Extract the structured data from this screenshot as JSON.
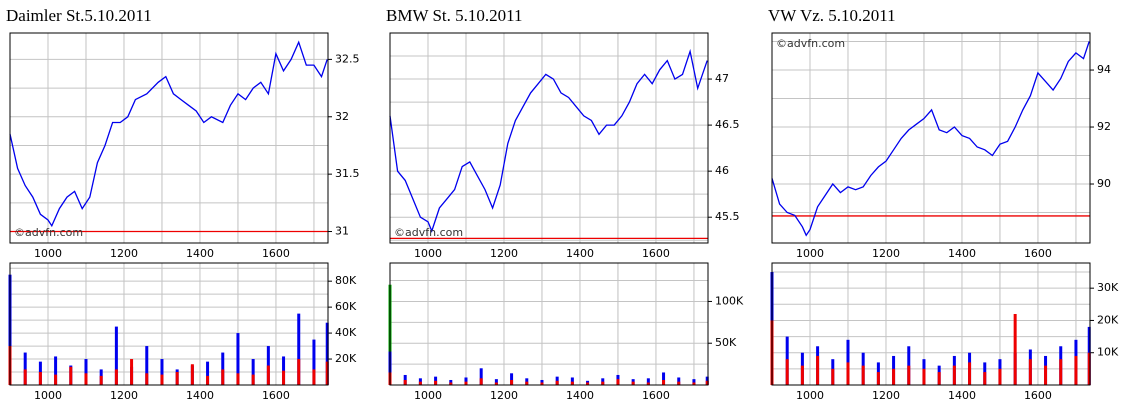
{
  "chart_data": [
    {
      "type": "line",
      "title": "Daimler St.5.10.2011",
      "watermark": "©advfn.com",
      "watermark_corner": "bottom-left",
      "x": [
        900,
        920,
        940,
        960,
        980,
        1000,
        1010,
        1030,
        1050,
        1070,
        1090,
        1110,
        1130,
        1150,
        1170,
        1190,
        1210,
        1230,
        1260,
        1290,
        1310,
        1330,
        1350,
        1370,
        1390,
        1410,
        1430,
        1460,
        1480,
        1500,
        1520,
        1540,
        1560,
        1580,
        1600,
        1620,
        1640,
        1660,
        1680,
        1700,
        1720,
        1735
      ],
      "series": [
        {
          "color": "#0000ee",
          "values": [
            31.85,
            31.55,
            31.4,
            31.3,
            31.15,
            31.1,
            31.05,
            31.2,
            31.3,
            31.35,
            31.2,
            31.3,
            31.6,
            31.75,
            31.95,
            31.95,
            32.0,
            32.15,
            32.2,
            32.3,
            32.35,
            32.2,
            32.15,
            32.1,
            32.05,
            31.95,
            32.0,
            31.95,
            32.1,
            32.2,
            32.15,
            32.25,
            32.3,
            32.2,
            32.55,
            32.4,
            32.5,
            32.65,
            32.45,
            32.45,
            32.35,
            32.5
          ]
        }
      ],
      "ref_line": {
        "value": 31,
        "color": "#ee0000"
      },
      "xlim": [
        900,
        1737
      ],
      "ylim": [
        30.9,
        32.73
      ],
      "xticks": [
        1000,
        1200,
        1400,
        1600
      ],
      "yticks": [
        31,
        31.5,
        32,
        32.5
      ],
      "grid": true
    },
    {
      "type": "bar",
      "x": [
        900,
        940,
        980,
        1020,
        1060,
        1100,
        1140,
        1180,
        1220,
        1260,
        1300,
        1340,
        1380,
        1420,
        1460,
        1500,
        1540,
        1580,
        1620,
        1660,
        1700,
        1735
      ],
      "series": [
        {
          "color": "#0000ee",
          "values": [
            85000,
            25000,
            18000,
            22000,
            15000,
            20000,
            12000,
            45000,
            14000,
            30000,
            20000,
            12000,
            15000,
            18000,
            25000,
            40000,
            20000,
            30000,
            22000,
            55000,
            35000,
            48000
          ]
        },
        {
          "color": "#ee0000",
          "values": [
            30000,
            12000,
            10000,
            8000,
            14000,
            9000,
            7000,
            12000,
            20000,
            9000,
            8000,
            10000,
            16000,
            7000,
            12000,
            9000,
            8000,
            15000,
            11000,
            20000,
            12000,
            18000
          ]
        }
      ],
      "xlim": [
        900,
        1737
      ],
      "ylim": [
        0,
        94000
      ],
      "xticks": [
        1000,
        1200,
        1400,
        1600
      ],
      "yticks": [
        {
          "value": 20000,
          "label": "20K"
        },
        {
          "value": 40000,
          "label": "40K"
        },
        {
          "value": 60000,
          "label": "60K"
        },
        {
          "value": 80000,
          "label": "80K"
        }
      ],
      "grid": true
    },
    {
      "type": "line",
      "title": "BMW St. 5.10.2011",
      "watermark": "©advfn.com",
      "watermark_corner": "bottom-left",
      "x": [
        900,
        920,
        940,
        960,
        980,
        1000,
        1010,
        1030,
        1050,
        1070,
        1090,
        1110,
        1130,
        1150,
        1170,
        1190,
        1210,
        1230,
        1250,
        1270,
        1290,
        1310,
        1330,
        1350,
        1370,
        1390,
        1410,
        1430,
        1450,
        1470,
        1490,
        1510,
        1530,
        1550,
        1570,
        1590,
        1610,
        1630,
        1650,
        1670,
        1690,
        1710,
        1735
      ],
      "series": [
        {
          "color": "#0000ee",
          "values": [
            46.6,
            46.0,
            45.9,
            45.7,
            45.5,
            45.45,
            45.35,
            45.6,
            45.7,
            45.8,
            46.05,
            46.1,
            45.95,
            45.8,
            45.6,
            45.85,
            46.3,
            46.55,
            46.7,
            46.85,
            46.95,
            47.05,
            47.0,
            46.85,
            46.8,
            46.7,
            46.6,
            46.55,
            46.4,
            46.5,
            46.5,
            46.6,
            46.75,
            46.95,
            47.05,
            46.95,
            47.1,
            47.2,
            47.0,
            47.05,
            47.3,
            46.9,
            47.2
          ]
        }
      ],
      "ref_line": {
        "value": 45.27,
        "color": "#ee0000"
      },
      "xlim": [
        900,
        1737
      ],
      "ylim": [
        45.22,
        47.5
      ],
      "xticks": [
        1000,
        1200,
        1400,
        1600
      ],
      "yticks": [
        45.5,
        46,
        46.5,
        47
      ],
      "grid": true
    },
    {
      "type": "bar",
      "x": [
        900,
        940,
        980,
        1020,
        1060,
        1100,
        1140,
        1180,
        1220,
        1260,
        1300,
        1340,
        1380,
        1420,
        1460,
        1500,
        1540,
        1580,
        1620,
        1660,
        1700,
        1735
      ],
      "series": [
        {
          "color": "#00aa00",
          "values": [
            120000,
            null,
            null,
            null,
            null,
            null,
            null,
            null,
            null,
            null,
            null,
            null,
            null,
            null,
            null,
            null,
            null,
            null,
            null,
            null,
            null,
            null
          ]
        },
        {
          "color": "#0000ee",
          "values": [
            40000,
            12000,
            8000,
            10000,
            6000,
            9000,
            20000,
            7000,
            14000,
            8000,
            6000,
            10000,
            9000,
            5000,
            8000,
            12000,
            7000,
            8000,
            15000,
            9000,
            7000,
            10000
          ]
        },
        {
          "color": "#ee0000",
          "values": [
            15000,
            6000,
            4000,
            5000,
            3000,
            4000,
            8000,
            3000,
            6000,
            4000,
            3000,
            5000,
            4000,
            3000,
            4000,
            7000,
            4000,
            3000,
            6000,
            4000,
            3000,
            5000
          ]
        }
      ],
      "xlim": [
        900,
        1737
      ],
      "ylim": [
        0,
        146000
      ],
      "xticks": [
        1000,
        1200,
        1400,
        1600
      ],
      "yticks": [
        {
          "value": 50000,
          "label": "50K"
        },
        {
          "value": 100000,
          "label": "100K"
        }
      ],
      "grid": true
    },
    {
      "type": "line",
      "title": "VW Vz. 5.10.2011",
      "watermark": "©advfn.com",
      "watermark_corner": "top-left",
      "x": [
        900,
        920,
        940,
        960,
        980,
        990,
        1000,
        1020,
        1040,
        1060,
        1080,
        1100,
        1120,
        1140,
        1160,
        1180,
        1200,
        1220,
        1240,
        1260,
        1280,
        1300,
        1320,
        1340,
        1360,
        1380,
        1400,
        1420,
        1440,
        1460,
        1480,
        1500,
        1520,
        1540,
        1560,
        1580,
        1600,
        1620,
        1640,
        1660,
        1680,
        1700,
        1720,
        1735
      ],
      "series": [
        {
          "color": "#0000ee",
          "values": [
            90.2,
            89.3,
            89.0,
            88.9,
            88.5,
            88.2,
            88.4,
            89.2,
            89.6,
            90.0,
            89.7,
            89.9,
            89.8,
            89.9,
            90.3,
            90.6,
            90.8,
            91.2,
            91.6,
            91.9,
            92.1,
            92.3,
            92.6,
            91.9,
            91.8,
            92.0,
            91.7,
            91.6,
            91.3,
            91.2,
            91.0,
            91.4,
            91.5,
            92.0,
            92.6,
            93.1,
            93.9,
            93.6,
            93.3,
            93.7,
            94.3,
            94.6,
            94.4,
            95.0
          ]
        }
      ],
      "ref_line": {
        "value": 88.88,
        "color": "#ee0000"
      },
      "xlim": [
        900,
        1737
      ],
      "ylim": [
        87.93,
        95.3
      ],
      "xticks": [
        1000,
        1200,
        1400,
        1600
      ],
      "yticks": [
        90,
        92,
        94
      ],
      "grid": true
    },
    {
      "type": "bar",
      "x": [
        900,
        940,
        980,
        1020,
        1060,
        1100,
        1140,
        1180,
        1220,
        1260,
        1300,
        1340,
        1380,
        1420,
        1460,
        1500,
        1540,
        1580,
        1620,
        1660,
        1700,
        1735
      ],
      "series": [
        {
          "color": "#0000ee",
          "values": [
            35000,
            15000,
            10000,
            12000,
            8000,
            14000,
            10000,
            7000,
            9000,
            12000,
            8000,
            6000,
            9000,
            10000,
            7000,
            8000,
            10000,
            11000,
            9000,
            12000,
            14000,
            18000
          ]
        },
        {
          "color": "#ee0000",
          "values": [
            20000,
            8000,
            6000,
            9000,
            5000,
            7000,
            6000,
            4000,
            5000,
            6000,
            5000,
            4000,
            6000,
            7000,
            4000,
            5000,
            22000,
            8000,
            6000,
            8000,
            9000,
            10000
          ]
        }
      ],
      "xlim": [
        900,
        1737
      ],
      "ylim": [
        0,
        37800
      ],
      "xticks": [
        1000,
        1200,
        1400,
        1600
      ],
      "yticks": [
        {
          "value": 10000,
          "label": "10K"
        },
        {
          "value": 20000,
          "label": "20K"
        },
        {
          "value": 30000,
          "label": "30K"
        }
      ],
      "grid": true
    }
  ]
}
